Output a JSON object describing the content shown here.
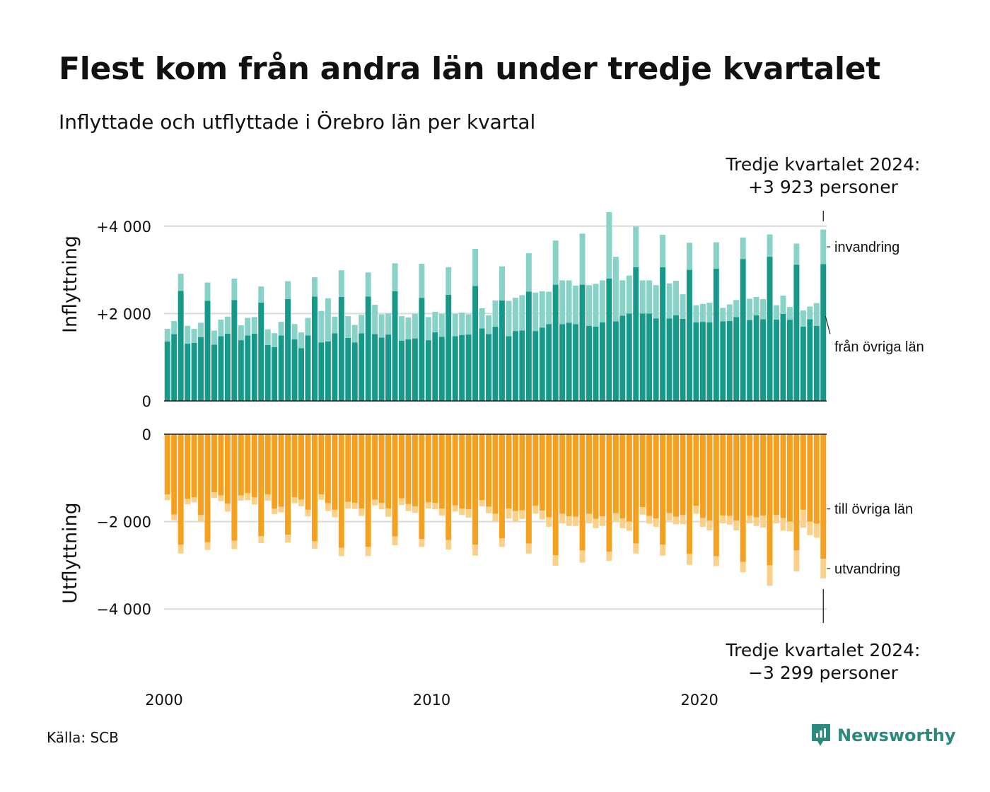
{
  "title": "Flest kom från andra län under tredje kvartalet",
  "subtitle": "Inflyttade och utflyttade i Örebro län per kvartal",
  "source": "Källa: SCB",
  "brand": "Newsworthy",
  "colors": {
    "in_domestic": "#17998a",
    "in_immigration": "#88d2c8",
    "out_domestic": "#f5a01e",
    "out_emigration": "#fbd189",
    "grid": "#d9d9d9",
    "axis": "#222222",
    "brand": "#2a8a7e"
  },
  "chart_data": {
    "type": "bar",
    "stacked": true,
    "x_range": [
      "2000 Q1",
      "2024 Q3"
    ],
    "x_ticks": [
      "2000",
      "2010",
      "2020"
    ],
    "top_panel": {
      "ylabel": "Inflyttning",
      "y_ticks": [
        "0",
        "+2 000",
        "+4 000"
      ],
      "y_tick_values": [
        0,
        2000,
        4000
      ],
      "ylim": [
        0,
        4300
      ],
      "series": [
        {
          "name": "från övriga län",
          "values": [
            1360,
            1530,
            2520,
            1310,
            1330,
            1460,
            2290,
            1290,
            1480,
            1540,
            2310,
            1390,
            1500,
            1540,
            2250,
            1280,
            1230,
            1500,
            2330,
            1410,
            1210,
            1500,
            2390,
            1340,
            1360,
            1550,
            2380,
            1440,
            1340,
            1550,
            2390,
            1530,
            1450,
            1520,
            2510,
            1380,
            1410,
            1430,
            2360,
            1390,
            1570,
            1470,
            2430,
            1480,
            1510,
            1520,
            2630,
            1660,
            1530,
            1700,
            2300,
            1480,
            1600,
            1610,
            2500,
            1600,
            1680,
            1760,
            2660,
            1760,
            1790,
            1760,
            2660,
            1720,
            1700,
            1800,
            2800,
            1820,
            1950,
            2000,
            3060,
            2000,
            2000,
            1890,
            3060,
            1890,
            1960,
            1880,
            3000,
            1800,
            1810,
            1800,
            3030,
            1820,
            1830,
            1920,
            3250,
            1850,
            1960,
            1870,
            3300,
            1860,
            1990,
            1860,
            3120,
            1700,
            1870,
            1720,
            3130
          ]
        },
        {
          "name": "invandring",
          "values": [
            290,
            300,
            390,
            410,
            320,
            330,
            420,
            320,
            380,
            390,
            490,
            340,
            400,
            380,
            370,
            360,
            320,
            310,
            410,
            350,
            360,
            400,
            440,
            720,
            990,
            380,
            610,
            500,
            400,
            420,
            550,
            670,
            530,
            480,
            640,
            560,
            500,
            560,
            780,
            530,
            470,
            520,
            630,
            510,
            510,
            460,
            850,
            460,
            430,
            600,
            780,
            810,
            760,
            810,
            880,
            880,
            830,
            740,
            1010,
            1000,
            970,
            880,
            1170,
            930,
            980,
            960,
            1520,
            1480,
            810,
            870,
            930,
            760,
            760,
            760,
            740,
            800,
            790,
            560,
            620,
            390,
            410,
            450,
            600,
            310,
            380,
            390,
            490,
            490,
            420,
            460,
            510,
            330,
            420,
            290,
            480,
            370,
            290,
            520,
            793
          ]
        }
      ],
      "labels": {
        "upper": "invandring",
        "lower": "från övriga län"
      },
      "annotation": [
        "Tredje kvartalet 2024:",
        "+3 923 personer"
      ]
    },
    "bottom_panel": {
      "ylabel": "Utflyttning",
      "y_ticks": [
        "0",
        "−2 000",
        "−4 000"
      ],
      "y_tick_values": [
        0,
        -2000,
        -4000
      ],
      "ylim": [
        -4300,
        0
      ],
      "series": [
        {
          "name": "till övriga län",
          "values": [
            -1380,
            -1840,
            -2530,
            -1480,
            -1440,
            -1850,
            -2470,
            -1330,
            -1400,
            -1590,
            -2440,
            -1400,
            -1350,
            -1440,
            -2330,
            -1380,
            -1700,
            -1660,
            -2300,
            -1440,
            -1500,
            -1730,
            -2450,
            -1380,
            -1580,
            -1730,
            -2600,
            -1550,
            -1570,
            -1700,
            -2580,
            -1500,
            -1570,
            -1700,
            -2340,
            -1470,
            -1600,
            -1650,
            -2400,
            -1560,
            -1570,
            -1700,
            -2420,
            -1630,
            -1700,
            -1720,
            -2530,
            -1510,
            -1660,
            -1820,
            -2380,
            -1700,
            -1760,
            -1740,
            -2500,
            -1640,
            -1750,
            -1900,
            -2770,
            -1820,
            -1880,
            -1890,
            -2660,
            -1820,
            -1940,
            -1880,
            -2690,
            -1810,
            -1930,
            -2000,
            -2500,
            -1670,
            -1870,
            -1930,
            -2530,
            -1810,
            -1890,
            -1850,
            -2740,
            -1640,
            -1920,
            -1980,
            -2790,
            -1860,
            -1870,
            -1980,
            -2920,
            -1860,
            -1900,
            -1860,
            -3000,
            -1850,
            -1920,
            -2000,
            -2660,
            -1730,
            -2000,
            -2050,
            -2850
          ]
        },
        {
          "name": "utvandring",
          "values": [
            -130,
            -130,
            -200,
            -120,
            -120,
            -160,
            -180,
            -130,
            -130,
            -180,
            -190,
            -120,
            -160,
            -170,
            -160,
            -140,
            -130,
            -130,
            -180,
            -140,
            -150,
            -150,
            -170,
            -120,
            -180,
            -170,
            -190,
            -150,
            -140,
            -170,
            -210,
            -130,
            -150,
            -190,
            -200,
            -150,
            -160,
            -150,
            -180,
            -140,
            -150,
            -160,
            -220,
            -140,
            -150,
            -190,
            -250,
            -140,
            -150,
            -170,
            -200,
            -230,
            -240,
            -200,
            -230,
            -180,
            -200,
            -220,
            -240,
            -220,
            -220,
            -210,
            -280,
            -220,
            -210,
            -220,
            -210,
            -180,
            -220,
            -210,
            -230,
            -170,
            -180,
            -190,
            -250,
            -170,
            -170,
            -210,
            -250,
            -180,
            -200,
            -220,
            -230,
            -180,
            -200,
            -220,
            -240,
            -180,
            -200,
            -280,
            -470,
            -190,
            -290,
            -220,
            -480,
            -410,
            -310,
            -320,
            -449
          ]
        }
      ],
      "labels": {
        "upper": "till övriga län",
        "lower": "utvandring"
      },
      "annotation": [
        "Tredje kvartalet 2024:",
        "−3 299 personer"
      ]
    }
  }
}
